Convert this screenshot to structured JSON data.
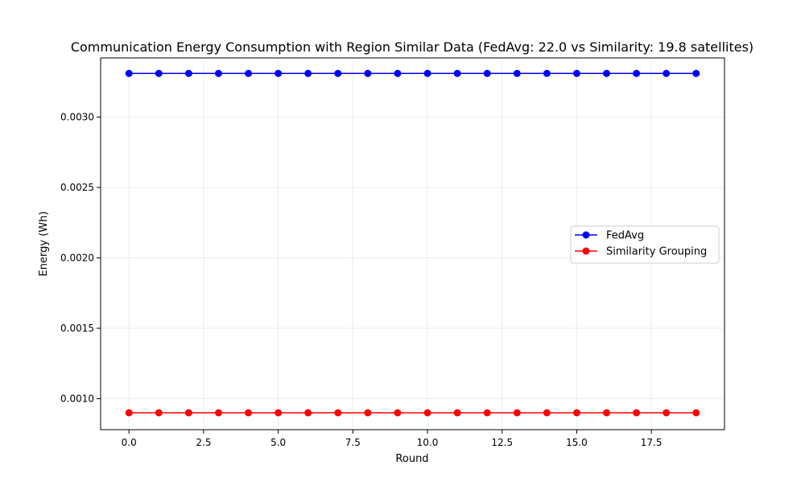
{
  "chart_data": {
    "type": "line",
    "title": "Communication Energy Consumption with Region Similar Data (FedAvg: 22.0 vs Similarity: 19.8 satellites)",
    "xlabel": "Round",
    "ylabel": "Energy (Wh)",
    "xlim": [
      -0.95,
      19.95
    ],
    "ylim": [
      0.00078,
      0.00342
    ],
    "xticks": [
      0.0,
      2.5,
      5.0,
      7.5,
      10.0,
      12.5,
      15.0,
      17.5
    ],
    "xtick_labels": [
      "0.0",
      "2.5",
      "5.0",
      "7.5",
      "10.0",
      "12.5",
      "15.0",
      "17.5"
    ],
    "yticks": [
      0.001,
      0.0015,
      0.002,
      0.0025,
      0.003
    ],
    "ytick_labels": [
      "0.0010",
      "0.0015",
      "0.0020",
      "0.0025",
      "0.0030"
    ],
    "grid": true,
    "legend_position": "center-right",
    "x": [
      0,
      1,
      2,
      3,
      4,
      5,
      6,
      7,
      8,
      9,
      10,
      11,
      12,
      13,
      14,
      15,
      16,
      17,
      18,
      19
    ],
    "series": [
      {
        "name": "FedAvg",
        "color": "#0000ff",
        "marker": "circle",
        "values": [
          0.00331,
          0.00331,
          0.00331,
          0.00331,
          0.00331,
          0.00331,
          0.00331,
          0.00331,
          0.00331,
          0.00331,
          0.00331,
          0.00331,
          0.00331,
          0.00331,
          0.00331,
          0.00331,
          0.00331,
          0.00331,
          0.00331,
          0.00331
        ]
      },
      {
        "name": "Similarity Grouping",
        "color": "#ff0000",
        "marker": "circle",
        "values": [
          0.0009,
          0.0009,
          0.0009,
          0.0009,
          0.0009,
          0.0009,
          0.0009,
          0.0009,
          0.0009,
          0.0009,
          0.0009,
          0.0009,
          0.0009,
          0.0009,
          0.0009,
          0.0009,
          0.0009,
          0.0009,
          0.0009,
          0.0009
        ]
      }
    ]
  }
}
